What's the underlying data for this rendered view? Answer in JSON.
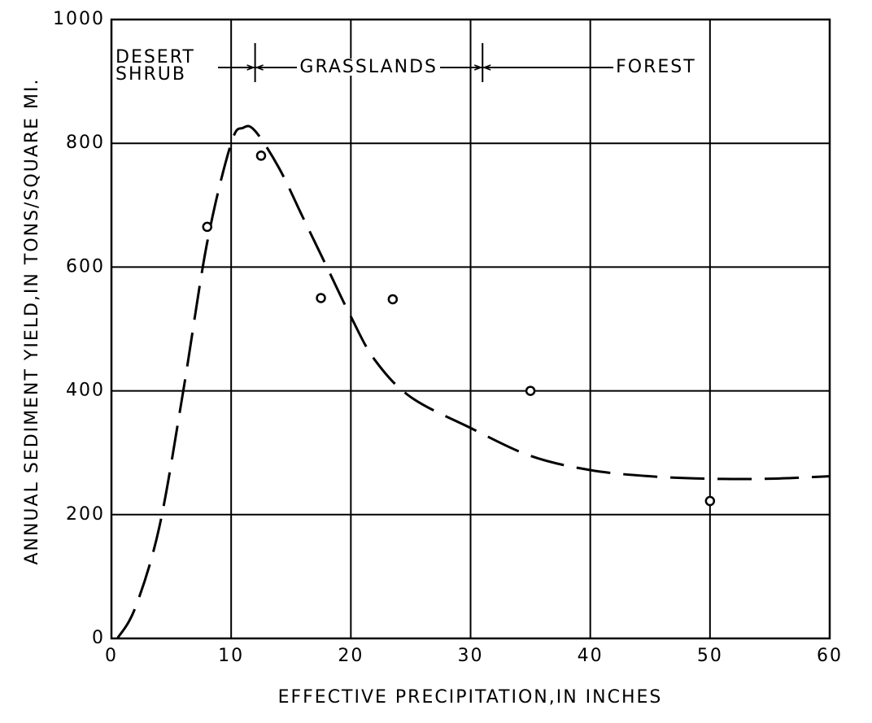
{
  "chart_data": {
    "type": "scatter",
    "x_label": "EFFECTIVE PRECIPITATION,IN INCHES",
    "y_label": "ANNUAL SEDIMENT YIELD,IN TONS/SQUARE MI.",
    "x": [
      8,
      12.5,
      17.5,
      23.5,
      35,
      50
    ],
    "values": [
      665,
      780,
      550,
      548,
      400,
      222
    ],
    "curve": {
      "x": [
        0.5,
        2,
        4,
        6,
        8,
        10,
        11,
        12,
        14,
        16,
        18,
        20,
        22,
        25,
        30,
        35,
        40,
        45,
        50,
        55,
        60
      ],
      "values": [
        0,
        50,
        180,
        400,
        640,
        800,
        825,
        820,
        760,
        680,
        600,
        520,
        450,
        390,
        340,
        295,
        272,
        262,
        258,
        258,
        262
      ]
    },
    "zones": [
      "DESERT SHRUB",
      "GRASSLANDS",
      "FOREST"
    ],
    "zone_boundaries": [
      12,
      31
    ],
    "xlim": [
      0,
      60
    ],
    "ylim": [
      0,
      1000
    ],
    "xticks": [
      0,
      10,
      20,
      30,
      40,
      50,
      60
    ],
    "yticks": [
      0,
      200,
      400,
      600,
      800,
      1000
    ],
    "grid": true,
    "color": "#000000"
  }
}
